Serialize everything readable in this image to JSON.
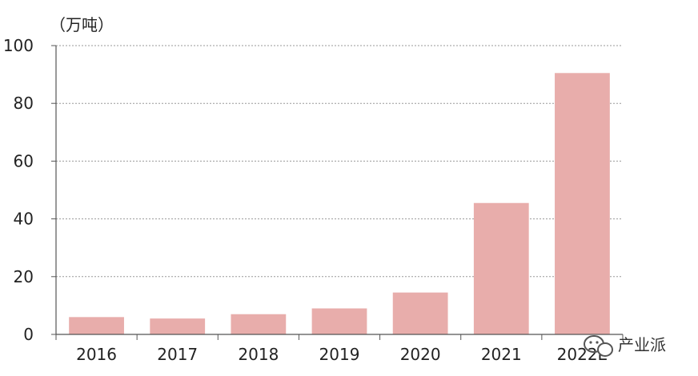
{
  "chart_data": {
    "type": "bar",
    "unit_label": "（万吨）",
    "categories": [
      "2016",
      "2017",
      "2018",
      "2019",
      "2020",
      "2021",
      "2022E"
    ],
    "values": [
      6,
      5.5,
      7,
      9,
      14.5,
      45.5,
      90.5
    ],
    "ylim": [
      0,
      100
    ],
    "yticks": [
      0,
      20,
      40,
      60,
      80,
      100
    ],
    "grid": true,
    "bar_color": "#e8adab"
  },
  "watermark": {
    "text": "产业派"
  }
}
